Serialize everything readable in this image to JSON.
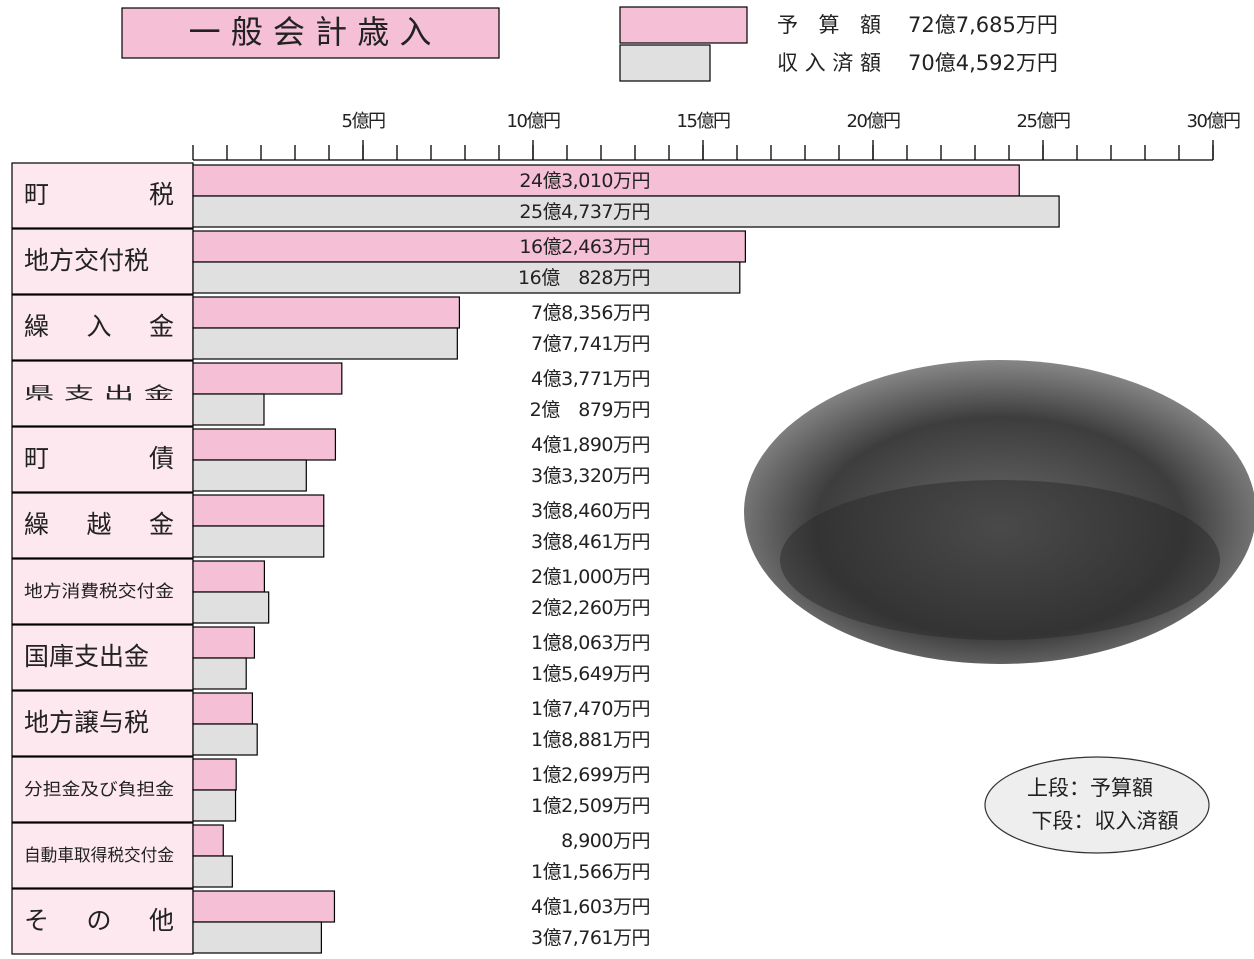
{
  "chart_data": {
    "type": "bar",
    "orientation": "horizontal",
    "title": "一 般 会 計 歳 入",
    "categories": [
      "町 税",
      "地方交付税",
      "繰 入 金",
      "県 支 出 金",
      "町 債",
      "繰 越 金",
      "地方消費税交付金",
      "国庫支出金",
      "地方譲与税",
      "分担金及び負担金",
      "自動車取得税交付金",
      "そ の 他"
    ],
    "series": [
      {
        "name": "予 算 額",
        "color": "#f5bfd6",
        "total": 72.7685,
        "total_label": "72億7,685万円",
        "values": [
          24.301,
          16.2463,
          7.8356,
          4.3771,
          4.189,
          3.846,
          2.1,
          1.8063,
          1.747,
          1.2699,
          0.89,
          4.1603
        ],
        "value_labels": [
          "24億3,010万円",
          "16億2,463万円",
          "7億8,356万円",
          "4億3,771万円",
          "4億1,890万円",
          "3億8,460万円",
          "2億1,000万円",
          "1億8,063万円",
          "1億7,470万円",
          "1億2,699万円",
          "8,900万円",
          "4億1,603万円"
        ]
      },
      {
        "name": "収入済額",
        "color": "#e0e0e0",
        "total": 70.4592,
        "total_label": "70億4,592万円",
        "values": [
          25.4737,
          16.0828,
          7.7741,
          2.0879,
          3.332,
          3.8461,
          2.226,
          1.5649,
          1.8881,
          1.2509,
          1.1566,
          3.7761
        ],
        "value_labels": [
          "25億4,737万円",
          "16億　828万円",
          "7億7,741万円",
          "2億　879万円",
          "3億3,320万円",
          "3億8,461万円",
          "2億2,260万円",
          "1億5,649万円",
          "1億8,881万円",
          "1億2,509万円",
          "1億1,566万円",
          "3億7,761万円"
        ]
      }
    ],
    "xlim": [
      0,
      30
    ],
    "xticks": [
      {
        "value": 5,
        "label": "5億円"
      },
      {
        "value": 10,
        "label": "10億円"
      },
      {
        "value": 15,
        "label": "15億円"
      },
      {
        "value": 20,
        "label": "20億円"
      },
      {
        "value": 25,
        "label": "25億円"
      },
      {
        "value": 30,
        "label": "30億円"
      }
    ],
    "x_minor_tick_step": 1,
    "annotation": [
      "上段：予算額",
      "下段：収入済額"
    ]
  }
}
